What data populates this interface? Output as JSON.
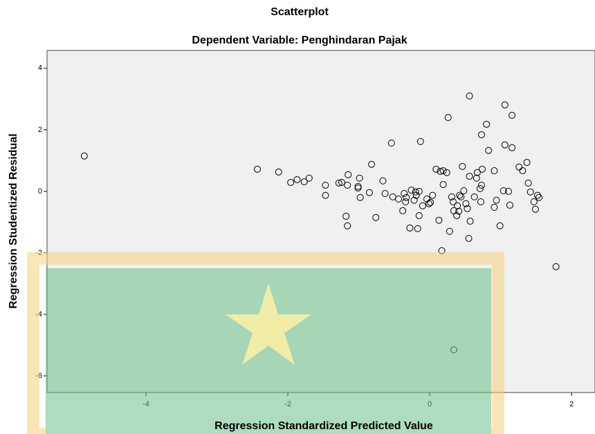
{
  "chart_data": {
    "type": "scatter",
    "title": "Scatterplot",
    "subtitle": "Dependent Variable: Penghindaran Pajak",
    "x_label": "Regression Standardized Predicted Value",
    "y_label": "Regression Studentized Residual",
    "xlim": [
      -5.395,
      2.33
    ],
    "ylim": [
      -6.54,
      4.58
    ],
    "xticks": [
      -4,
      -2,
      0,
      2
    ],
    "yticks": [
      -6,
      -4,
      -2,
      0,
      2,
      4
    ],
    "color": "#000000",
    "background": "#f0f0f0",
    "x": [
      -4.87,
      -2.43,
      -2.13,
      -1.96,
      -1.87,
      -1.77,
      -1.7,
      -1.47,
      -1.47,
      -1.28,
      -1.24,
      -1.15,
      -1.16,
      -1.18,
      -1.16,
      -1.01,
      -0.99,
      -0.98,
      -1.01,
      -0.82,
      -0.85,
      -0.76,
      -0.66,
      -0.63,
      -0.54,
      -0.52,
      -0.44,
      -0.38,
      -0.36,
      -0.33,
      -0.34,
      -0.28,
      -0.26,
      -0.22,
      -0.2,
      -0.19,
      -0.17,
      -0.15,
      -0.13,
      -0.15,
      -0.1,
      -0.04,
      -0.01,
      0.01,
      0.04,
      0.09,
      0.13,
      0.15,
      0.17,
      0.19,
      0.19,
      0.24,
      0.26,
      0.28,
      0.31,
      0.33,
      0.34,
      0.34,
      0.39,
      0.41,
      0.38,
      0.42,
      0.44,
      0.46,
      0.48,
      0.51,
      0.53,
      0.55,
      0.56,
      0.56,
      0.57,
      0.63,
      0.66,
      0.67,
      0.71,
      0.73,
      0.72,
      0.74,
      0.73,
      0.8,
      0.83,
      0.91,
      0.91,
      0.94,
      0.99,
      1.04,
      1.06,
      1.06,
      1.11,
      1.13,
      1.16,
      1.16,
      1.26,
      1.31,
      1.37,
      1.39,
      1.42,
      1.47,
      1.49,
      1.52,
      1.54,
      1.78
    ],
    "y": [
      1.15,
      0.72,
      0.63,
      0.29,
      0.38,
      0.31,
      0.43,
      0.2,
      -0.13,
      0.27,
      0.29,
      0.54,
      0.2,
      -0.81,
      -1.12,
      0.16,
      0.43,
      -0.2,
      0.11,
      0.88,
      -0.04,
      -0.85,
      0.34,
      -0.07,
      1.57,
      -0.18,
      -0.25,
      -0.63,
      -0.07,
      -0.2,
      -0.34,
      -1.19,
      0.04,
      -0.29,
      -0.02,
      -0.13,
      -1.21,
      0.0,
      1.62,
      -0.79,
      -0.47,
      -0.25,
      -0.4,
      -0.36,
      -0.13,
      0.72,
      -0.94,
      0.65,
      -1.93,
      0.22,
      0.67,
      0.61,
      2.4,
      -1.3,
      -0.18,
      -0.34,
      -0.63,
      -5.15,
      -0.47,
      -0.65,
      -0.79,
      -0.13,
      -0.18,
      0.81,
      0.02,
      -0.4,
      -0.56,
      -1.53,
      3.1,
      0.49,
      -0.97,
      -0.18,
      0.43,
      0.61,
      0.09,
      0.2,
      -0.34,
      0.72,
      1.84,
      2.18,
      1.33,
      0.67,
      -0.52,
      -0.29,
      -1.12,
      0.02,
      1.51,
      2.81,
      0.0,
      -0.45,
      2.47,
      1.42,
      0.79,
      0.67,
      0.94,
      0.27,
      -0.02,
      -0.34,
      -0.58,
      -0.13,
      -0.2,
      -2.45
    ]
  }
}
